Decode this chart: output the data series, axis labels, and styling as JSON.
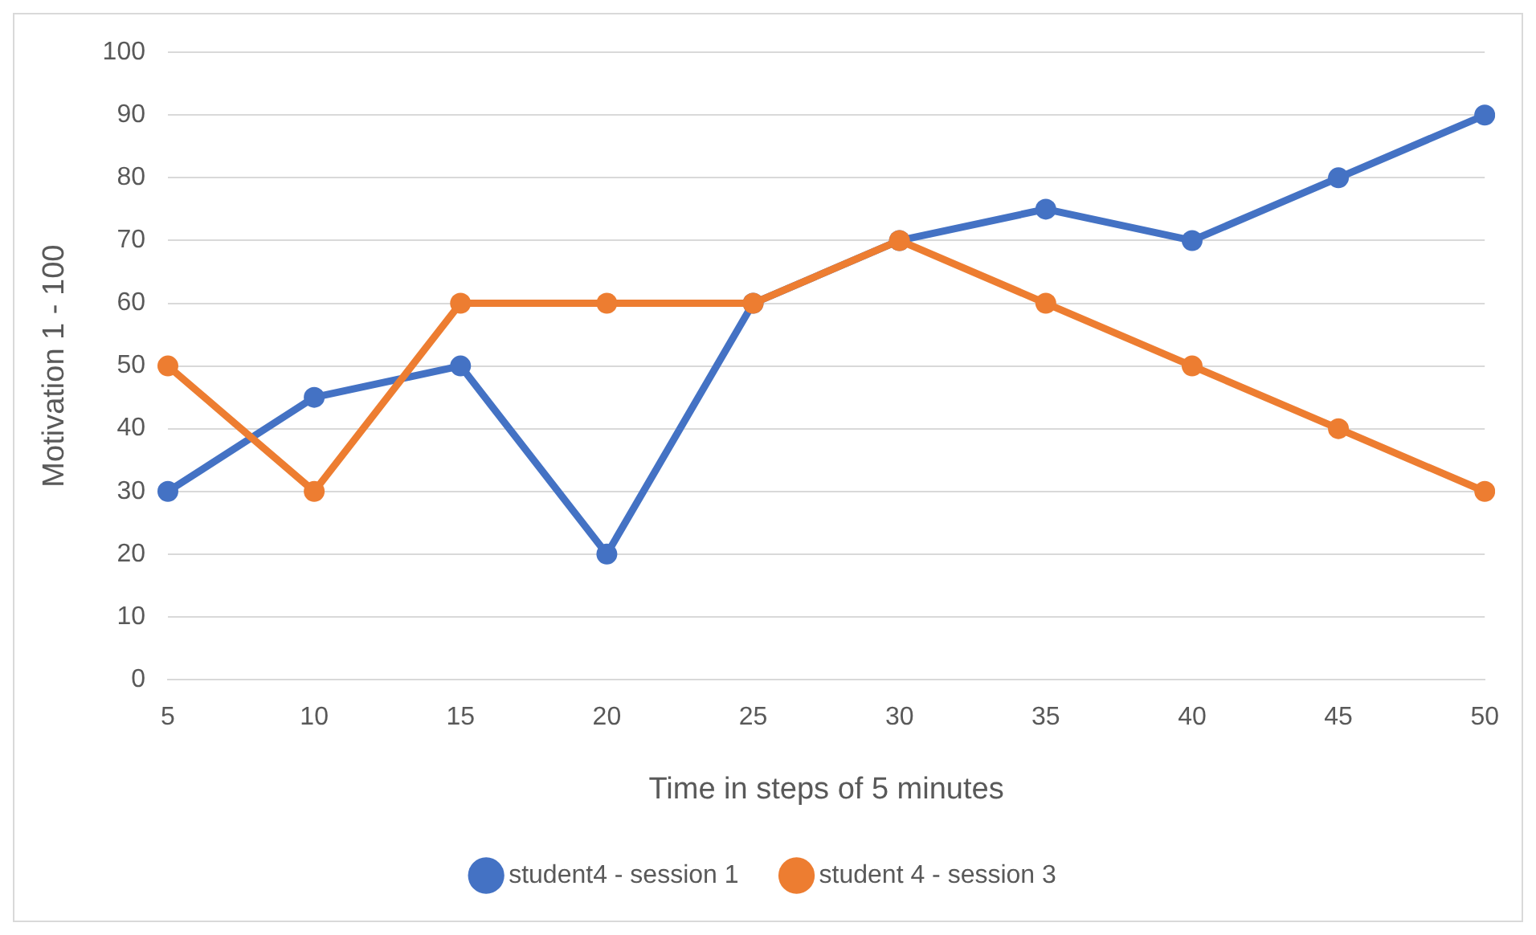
{
  "chart_data": {
    "type": "line",
    "xlabel": "Time in steps of 5 minutes",
    "ylabel": "Motivation 1 - 100",
    "categories": [
      "5",
      "10",
      "15",
      "20",
      "25",
      "30",
      "35",
      "40",
      "45",
      "50"
    ],
    "series": [
      {
        "name": "student4 - session 1",
        "color": "#4472c4",
        "values": [
          30,
          45,
          50,
          20,
          60,
          70,
          75,
          70,
          80,
          90
        ]
      },
      {
        "name": "student 4 - session 3",
        "color": "#ed7d31",
        "values": [
          50,
          30,
          60,
          60,
          60,
          70,
          60,
          50,
          40,
          30
        ]
      }
    ],
    "ylim": [
      0,
      100
    ],
    "yticks": [
      0,
      10,
      20,
      30,
      40,
      50,
      60,
      70,
      80,
      90,
      100
    ],
    "grid": "y",
    "legend": "bottom",
    "marker": "circle",
    "line_style": "solid"
  }
}
